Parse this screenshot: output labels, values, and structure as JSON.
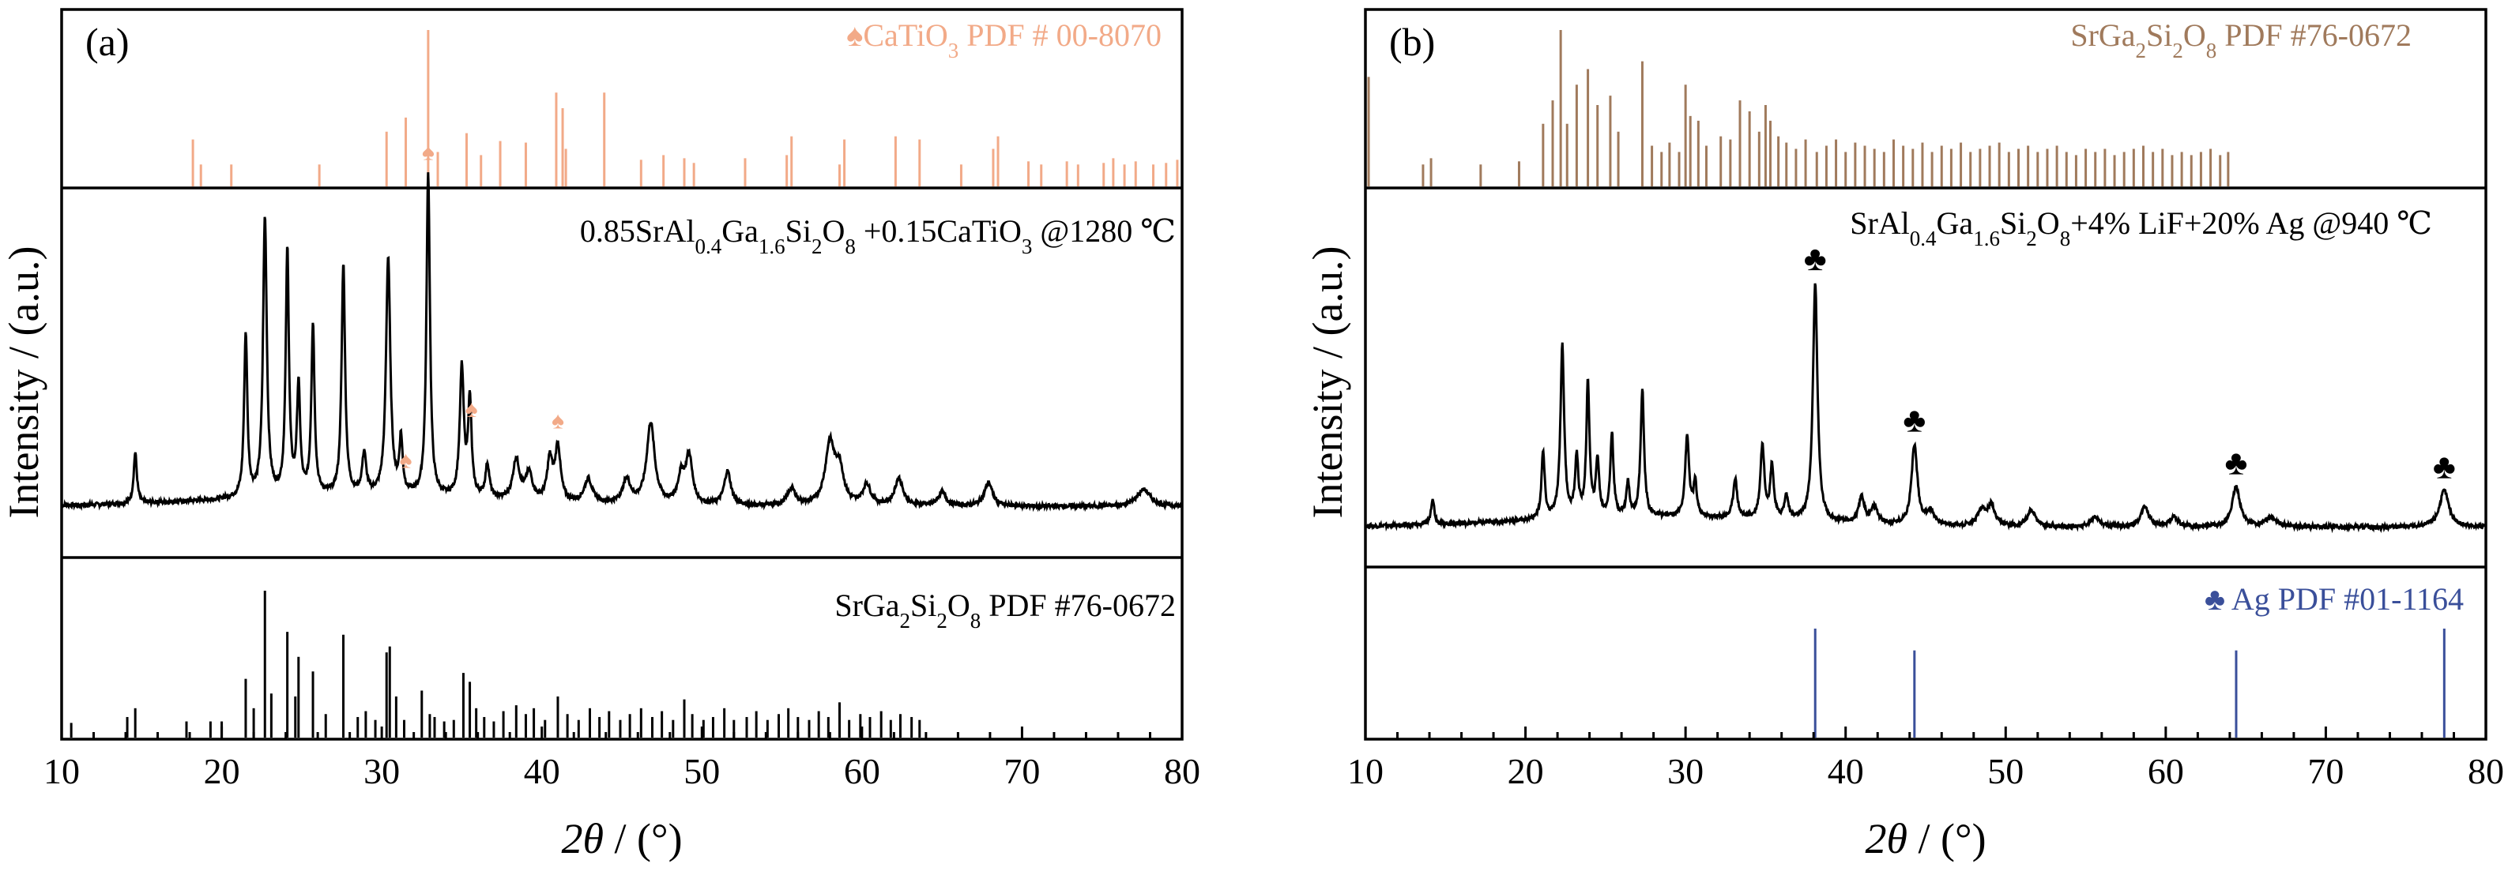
{
  "chart_data": [
    {
      "type": "line",
      "panel_label": "(a)",
      "xlabel_var": "2θ",
      "xlabel_unit": " / (°)",
      "ylabel": "Intensity / (a.u.)",
      "xlim": [
        10,
        80
      ],
      "xticks": [
        "10",
        "20",
        "30",
        "40",
        "50",
        "60",
        "70",
        "80"
      ],
      "colors": {
        "reference_top": "#f2aa88",
        "pattern": "#000000",
        "reference_bottom": "#000000"
      },
      "reference_top": {
        "label_marker": "♠",
        "label_parts": [
          "CaTiO",
          "3",
          " PDF # 00-8070"
        ],
        "color": "#f2aa88",
        "peaks_x": [
          18.2,
          18.7,
          20.6,
          26.1,
          30.3,
          31.5,
          32.9,
          33.5,
          35.3,
          36.2,
          37.4,
          39.0,
          40.9,
          41.3,
          41.5,
          43.9,
          46.2,
          47.6,
          48.9,
          49.5,
          52.7,
          55.3,
          55.6,
          58.6,
          58.9,
          62.1,
          63.6,
          66.2,
          68.2,
          68.5,
          70.4,
          71.2,
          72.8,
          73.5,
          75.1,
          75.7,
          76.4,
          77.1,
          78.2,
          79.0,
          79.7
        ],
        "peaks_y": [
          30,
          14,
          14,
          14,
          35,
          44,
          100,
          22,
          34,
          20,
          29,
          28,
          60,
          50,
          24,
          60,
          17,
          20,
          18,
          15,
          18,
          20,
          32,
          14,
          30,
          32,
          30,
          14,
          24,
          32,
          16,
          14,
          16,
          14,
          15,
          18,
          14,
          16,
          14,
          15,
          17
        ]
      },
      "pattern": {
        "annotation_parts": [
          "0.85SrAl",
          "0.4",
          "Ga",
          "1.6",
          "Si",
          "2",
          "O",
          "8",
          " +0.15CaTiO",
          "3",
          " @1280 ℃"
        ],
        "marker": "♠",
        "marked_peaks_x": [
          31.5,
          32.9,
          35.6,
          41.0
        ],
        "peaks": [
          {
            "x": 14.6,
            "h": 0.15,
            "w": 0.12
          },
          {
            "x": 21.5,
            "h": 0.48,
            "w": 0.12
          },
          {
            "x": 22.7,
            "h": 0.82,
            "w": 0.14
          },
          {
            "x": 24.1,
            "h": 0.72,
            "w": 0.12
          },
          {
            "x": 24.8,
            "h": 0.32,
            "w": 0.12
          },
          {
            "x": 25.7,
            "h": 0.5,
            "w": 0.12
          },
          {
            "x": 27.6,
            "h": 0.68,
            "w": 0.13
          },
          {
            "x": 28.9,
            "h": 0.12,
            "w": 0.15
          },
          {
            "x": 30.4,
            "h": 0.7,
            "w": 0.16
          },
          {
            "x": 31.2,
            "h": 0.16,
            "w": 0.12
          },
          {
            "x": 32.9,
            "h": 0.95,
            "w": 0.13
          },
          {
            "x": 35.0,
            "h": 0.38,
            "w": 0.15
          },
          {
            "x": 35.5,
            "h": 0.28,
            "w": 0.13
          },
          {
            "x": 36.6,
            "h": 0.1,
            "w": 0.15
          },
          {
            "x": 38.4,
            "h": 0.12,
            "w": 0.25
          },
          {
            "x": 39.2,
            "h": 0.08,
            "w": 0.25
          },
          {
            "x": 40.5,
            "h": 0.12,
            "w": 0.2
          },
          {
            "x": 41.0,
            "h": 0.16,
            "w": 0.2
          },
          {
            "x": 42.9,
            "h": 0.07,
            "w": 0.3
          },
          {
            "x": 45.3,
            "h": 0.07,
            "w": 0.3
          },
          {
            "x": 46.8,
            "h": 0.24,
            "w": 0.3
          },
          {
            "x": 48.7,
            "h": 0.08,
            "w": 0.25
          },
          {
            "x": 49.2,
            "h": 0.14,
            "w": 0.25
          },
          {
            "x": 51.6,
            "h": 0.1,
            "w": 0.25
          },
          {
            "x": 55.6,
            "h": 0.05,
            "w": 0.3
          },
          {
            "x": 58.0,
            "h": 0.18,
            "w": 0.35
          },
          {
            "x": 58.6,
            "h": 0.1,
            "w": 0.3
          },
          {
            "x": 60.3,
            "h": 0.06,
            "w": 0.3
          },
          {
            "x": 62.3,
            "h": 0.08,
            "w": 0.3
          },
          {
            "x": 65.0,
            "h": 0.04,
            "w": 0.3
          },
          {
            "x": 67.9,
            "h": 0.07,
            "w": 0.3
          },
          {
            "x": 77.6,
            "h": 0.05,
            "w": 0.5
          }
        ]
      },
      "reference_bottom": {
        "label_parts": [
          "SrGa",
          "2",
          "Si",
          "2",
          "O",
          "8",
          " PDF #76-0672"
        ],
        "color": "#000000",
        "peaks_x": [
          10.6,
          14.1,
          14.6,
          17.8,
          19.3,
          20.0,
          21.5,
          22.0,
          22.7,
          23.1,
          24.1,
          24.6,
          24.8,
          25.7,
          26.5,
          27.6,
          28.5,
          29.0,
          29.6,
          30.3,
          30.5,
          30.9,
          31.4,
          32.5,
          33.0,
          33.3,
          33.9,
          34.5,
          35.1,
          35.5,
          35.9,
          36.4,
          37.0,
          37.6,
          38.4,
          39.0,
          39.5,
          40.2,
          41.0,
          41.6,
          42.3,
          43.0,
          43.6,
          44.2,
          44.9,
          45.5,
          46.2,
          46.9,
          47.5,
          48.2,
          48.9,
          49.4,
          50.1,
          50.7,
          51.4,
          52.0,
          52.8,
          53.4,
          54.1,
          54.8,
          55.4,
          56.0,
          56.7,
          57.3,
          57.9,
          58.6,
          59.2,
          59.9,
          60.5,
          61.2,
          61.8,
          62.4,
          63.1,
          63.6
        ],
        "peaks_y": [
          10,
          14,
          20,
          11,
          11,
          11,
          40,
          20,
          100,
          30,
          72,
          28,
          55,
          45,
          16,
          70,
          14,
          18,
          12,
          58,
          62,
          28,
          12,
          32,
          16,
          14,
          11,
          12,
          44,
          38,
          20,
          14,
          11,
          18,
          22,
          16,
          20,
          12,
          28,
          16,
          12,
          20,
          14,
          18,
          12,
          16,
          20,
          14,
          18,
          12,
          26,
          16,
          12,
          14,
          20,
          12,
          14,
          18,
          12,
          16,
          20,
          14,
          12,
          18,
          14,
          24,
          12,
          16,
          14,
          18,
          12,
          16,
          14,
          12
        ]
      }
    },
    {
      "type": "line",
      "panel_label": "(b)",
      "xlabel_var": "2θ",
      "xlabel_unit": " / (°)",
      "ylabel": "Intensity / (a.u.)",
      "xlim": [
        10,
        80
      ],
      "xticks": [
        "10",
        "20",
        "30",
        "40",
        "50",
        "60",
        "70",
        "80"
      ],
      "colors": {
        "reference_top": "#a07a5c",
        "pattern": "#000000",
        "reference_bottom": "#3a4f9a"
      },
      "reference_top": {
        "label_marker": "",
        "label_parts": [
          "SrGa",
          "2",
          "Si",
          "2",
          "O",
          "8",
          " PDF #76-0672"
        ],
        "color": "#a07a5c",
        "peaks_x": [
          10.2,
          13.6,
          14.1,
          17.2,
          19.6,
          21.1,
          21.7,
          22.2,
          22.6,
          23.2,
          23.9,
          24.5,
          25.3,
          25.8,
          27.3,
          27.9,
          28.5,
          29.0,
          29.6,
          30.0,
          30.3,
          30.8,
          31.3,
          32.2,
          32.8,
          33.4,
          34.0,
          34.6,
          35.0,
          35.3,
          35.8,
          36.3,
          36.9,
          37.5,
          38.2,
          38.8,
          39.4,
          40.0,
          40.6,
          41.2,
          41.8,
          42.4,
          43.0,
          43.6,
          44.2,
          44.8,
          45.4,
          46.0,
          46.6,
          47.2,
          47.8,
          48.4,
          49.0,
          49.6,
          50.2,
          50.8,
          51.4,
          52.0,
          52.6,
          53.2,
          53.8,
          54.4,
          55.0,
          55.6,
          56.2,
          56.8,
          57.4,
          58.0,
          58.6,
          59.2,
          59.8,
          60.4,
          61.0,
          61.6,
          62.2,
          62.8,
          63.4,
          63.9
        ],
        "peaks_y": [
          70,
          14,
          18,
          14,
          16,
          40,
          55,
          100,
          40,
          65,
          75,
          52,
          58,
          35,
          80,
          26,
          22,
          28,
          22,
          65,
          45,
          42,
          26,
          32,
          30,
          55,
          48,
          35,
          52,
          42,
          32,
          28,
          24,
          30,
          22,
          26,
          30,
          22,
          28,
          26,
          24,
          22,
          30,
          26,
          24,
          28,
          22,
          26,
          24,
          28,
          22,
          24,
          26,
          28,
          22,
          24,
          26,
          22,
          24,
          26,
          22,
          20,
          24,
          22,
          24,
          20,
          22,
          24,
          26,
          22,
          24,
          20,
          22,
          20,
          22,
          24,
          20,
          22
        ]
      },
      "pattern": {
        "annotation_parts": [
          "SrAl",
          "0.4",
          "Ga",
          "1.6",
          "Si",
          "2",
          "O",
          "8",
          "+4% LiF+20% Ag @940 ℃"
        ],
        "marker": "♣",
        "marked_peaks_x": [
          38.1,
          44.3,
          64.4,
          77.4
        ],
        "peaks": [
          {
            "x": 14.2,
            "h": 0.08,
            "w": 0.12
          },
          {
            "x": 21.1,
            "h": 0.2,
            "w": 0.12
          },
          {
            "x": 22.3,
            "h": 0.52,
            "w": 0.14
          },
          {
            "x": 23.2,
            "h": 0.18,
            "w": 0.12
          },
          {
            "x": 23.9,
            "h": 0.4,
            "w": 0.12
          },
          {
            "x": 24.5,
            "h": 0.17,
            "w": 0.12
          },
          {
            "x": 25.4,
            "h": 0.25,
            "w": 0.12
          },
          {
            "x": 26.4,
            "h": 0.1,
            "w": 0.12
          },
          {
            "x": 27.3,
            "h": 0.38,
            "w": 0.13
          },
          {
            "x": 30.1,
            "h": 0.24,
            "w": 0.15
          },
          {
            "x": 30.6,
            "h": 0.1,
            "w": 0.12
          },
          {
            "x": 33.1,
            "h": 0.12,
            "w": 0.15
          },
          {
            "x": 34.8,
            "h": 0.22,
            "w": 0.15
          },
          {
            "x": 35.4,
            "h": 0.16,
            "w": 0.13
          },
          {
            "x": 36.3,
            "h": 0.07,
            "w": 0.15
          },
          {
            "x": 38.1,
            "h": 0.72,
            "w": 0.17
          },
          {
            "x": 41.0,
            "h": 0.08,
            "w": 0.2
          },
          {
            "x": 41.8,
            "h": 0.05,
            "w": 0.25
          },
          {
            "x": 44.3,
            "h": 0.24,
            "w": 0.22
          },
          {
            "x": 45.3,
            "h": 0.04,
            "w": 0.3
          },
          {
            "x": 48.5,
            "h": 0.05,
            "w": 0.3
          },
          {
            "x": 49.1,
            "h": 0.06,
            "w": 0.25
          },
          {
            "x": 51.6,
            "h": 0.05,
            "w": 0.3
          },
          {
            "x": 55.6,
            "h": 0.03,
            "w": 0.3
          },
          {
            "x": 58.7,
            "h": 0.06,
            "w": 0.3
          },
          {
            "x": 60.5,
            "h": 0.03,
            "w": 0.3
          },
          {
            "x": 64.4,
            "h": 0.12,
            "w": 0.3
          },
          {
            "x": 66.6,
            "h": 0.03,
            "w": 0.4
          },
          {
            "x": 77.4,
            "h": 0.11,
            "w": 0.35
          }
        ]
      },
      "reference_bottom": {
        "label_marker": "♣",
        "label_parts": [
          "Ag PDF #01-1164"
        ],
        "color": "#3a4f9a",
        "peaks_x": [
          38.1,
          44.3,
          64.4,
          77.4
        ],
        "peaks_y": [
          100,
          80,
          80,
          100
        ]
      }
    }
  ]
}
